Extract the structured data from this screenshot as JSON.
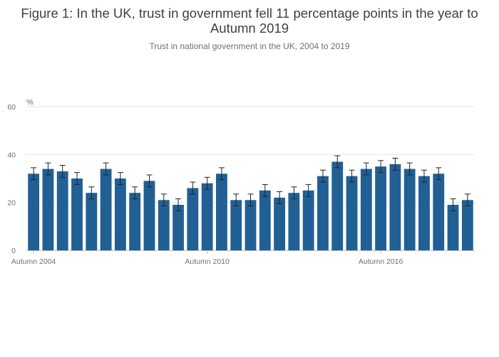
{
  "title": "Figure 1: In the UK, trust in government fell 11 percentage points in the year to Autumn 2019",
  "subtitle": "Trust in national government in the UK, 2004 to 2019",
  "chart_data": {
    "type": "bar",
    "title": "Figure 1: In the UK, trust in government fell 11 percentage points in the year to Autumn 2019",
    "subtitle": "Trust in national government in the UK, 2004 to 2019",
    "ylabel": "%",
    "xlabel": "",
    "ylim": [
      0,
      60
    ],
    "yticks": [
      0,
      20,
      40,
      60
    ],
    "grid": true,
    "color": "#206095",
    "errorbar_color": "#222222",
    "xtick_labels": [
      "Autumn 2004",
      "Autumn 2010",
      "Autumn 2016"
    ],
    "xtick_indices": [
      0,
      12,
      24
    ],
    "values": [
      32,
      34,
      33,
      30,
      24,
      34,
      30,
      24,
      29,
      21,
      19,
      26,
      28,
      32,
      21,
      21,
      25,
      22,
      24,
      25,
      31,
      37,
      31,
      34,
      35,
      36,
      34,
      31,
      32,
      19,
      21
    ],
    "error_margin": [
      2.5,
      2.5,
      2.5,
      2.5,
      2.5,
      2.5,
      2.5,
      2.5,
      2.5,
      2.5,
      2.5,
      2.5,
      2.5,
      2.5,
      2.5,
      2.5,
      2.5,
      2.5,
      2.5,
      2.5,
      2.5,
      2.5,
      2.5,
      2.5,
      2.5,
      2.5,
      2.5,
      2.5,
      2.5,
      2.5,
      2.5
    ]
  }
}
